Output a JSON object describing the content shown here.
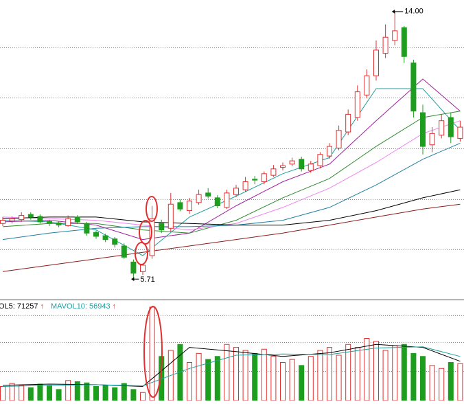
{
  "chart_data": {
    "type": "candlestick",
    "ylim": [
      5.03,
      14.36
    ],
    "grid_levels": [
      12.89,
      11.32,
      9.74,
      8.15,
      6.59
    ],
    "up_color": "#e03030",
    "down_color": "#1e9e1e",
    "candles": {
      "open": [
        7.4,
        7.48,
        7.52,
        7.68,
        7.62,
        7.46,
        7.42,
        7.33,
        7.6,
        7.4,
        7.12,
        7.02,
        6.92,
        6.7,
        6.2,
        5.9,
        6.4,
        7.4,
        7.25,
        8.05,
        7.8,
        8.05,
        8.35,
        8.2,
        7.9,
        8.3,
        8.45,
        8.78,
        8.7,
        8.9,
        9.15,
        9.25,
        9.4,
        9.05,
        9.2,
        9.5,
        9.75,
        10.25,
        10.7,
        11.4,
        12.0,
        12.7,
        13.1,
        13.5,
        12.4,
        10.85,
        9.85,
        10.15,
        10.7,
        10.05
      ],
      "high": [
        7.6,
        7.62,
        7.75,
        7.75,
        7.68,
        7.52,
        7.48,
        7.65,
        7.66,
        7.45,
        7.18,
        7.08,
        6.98,
        6.78,
        6.28,
        6.15,
        7.95,
        7.52,
        8.35,
        8.15,
        8.2,
        8.45,
        8.5,
        8.28,
        8.45,
        8.6,
        8.85,
        8.88,
        9.02,
        9.22,
        9.3,
        9.45,
        9.48,
        9.35,
        9.62,
        9.9,
        10.45,
        10.95,
        11.7,
        12.2,
        13.1,
        13.6,
        14.0,
        13.55,
        12.5,
        11.1,
        10.4,
        10.8,
        10.85,
        10.6
      ],
      "low": [
        7.32,
        7.4,
        7.45,
        7.52,
        7.4,
        7.32,
        7.28,
        7.3,
        7.38,
        7.02,
        6.92,
        6.82,
        6.65,
        6.3,
        5.71,
        5.8,
        6.3,
        7.1,
        7.15,
        7.78,
        7.7,
        7.98,
        8.18,
        7.88,
        7.85,
        8.22,
        8.38,
        8.62,
        8.62,
        8.85,
        9.05,
        9.18,
        9.02,
        8.98,
        9.12,
        9.42,
        9.68,
        10.15,
        10.6,
        11.3,
        11.85,
        12.55,
        12.95,
        12.4,
        10.7,
        9.55,
        9.62,
        10.05,
        9.9,
        9.95
      ],
      "close": [
        7.5,
        7.55,
        7.65,
        7.6,
        7.45,
        7.4,
        7.35,
        7.55,
        7.45,
        7.1,
        7.0,
        6.9,
        6.75,
        6.35,
        5.85,
        6.1,
        7.55,
        7.2,
        8.0,
        7.85,
        8.1,
        8.3,
        8.25,
        7.95,
        8.35,
        8.5,
        8.7,
        8.75,
        8.95,
        9.1,
        9.2,
        9.35,
        9.1,
        9.25,
        9.55,
        9.8,
        10.3,
        10.8,
        11.5,
        12.0,
        12.8,
        13.2,
        13.4,
        12.6,
        10.9,
        9.8,
        10.2,
        10.6,
        10.1,
        10.4
      ]
    },
    "high_label": "14.00",
    "low_label": "5.71",
    "ma_x": [
      0,
      5,
      10,
      15,
      20,
      25,
      30,
      35,
      40,
      45,
      49
    ],
    "ma_lines": [
      {
        "color": "#1f9f9f",
        "values": [
          7.5,
          7.45,
          7.2,
          6.4,
          7.6,
          8.25,
          8.95,
          9.45,
          11.6,
          11.6,
          10.3
        ]
      },
      {
        "color": "#a020a0",
        "values": [
          7.45,
          7.5,
          7.35,
          6.9,
          7.1,
          7.95,
          8.7,
          9.25,
          10.6,
          11.9,
          10.9
        ]
      },
      {
        "color": "#2e8b2e",
        "values": [
          7.3,
          7.4,
          7.4,
          7.2,
          7.1,
          7.5,
          8.2,
          8.8,
          9.8,
          10.7,
          10.9
        ]
      },
      {
        "color": "#ee82ee",
        "values": [
          7.6,
          7.55,
          7.5,
          7.35,
          7.2,
          7.4,
          7.9,
          8.5,
          9.3,
          10.2,
          10.6
        ]
      },
      {
        "color": "#2080a0",
        "values": [
          6.9,
          7.1,
          7.25,
          7.3,
          7.3,
          7.35,
          7.5,
          7.9,
          8.6,
          9.4,
          9.9
        ]
      },
      {
        "color": "#000000",
        "values": [
          7.55,
          7.6,
          7.6,
          7.45,
          7.4,
          7.35,
          7.35,
          7.5,
          7.8,
          8.2,
          8.45
        ]
      },
      {
        "color": "#8b1a1a",
        "values": [
          5.9,
          6.1,
          6.3,
          6.5,
          6.7,
          6.9,
          7.1,
          7.35,
          7.6,
          7.85,
          8.0
        ]
      }
    ],
    "volume": {
      "ylim": [
        0,
        160000
      ],
      "grid_levels": [
        138000,
        94000,
        46000
      ],
      "values": [
        20000,
        25000,
        22000,
        18000,
        24000,
        21000,
        15000,
        30000,
        28000,
        26000,
        20000,
        22000,
        18000,
        25000,
        15000,
        10000,
        152000,
        70000,
        80000,
        90000,
        60000,
        75000,
        65000,
        70000,
        90000,
        85000,
        80000,
        75000,
        82000,
        70000,
        60000,
        65000,
        55000,
        70000,
        80000,
        85000,
        72000,
        90000,
        85000,
        100000,
        95000,
        80000,
        88000,
        90000,
        75000,
        70000,
        55000,
        50000,
        60000,
        58000
      ],
      "ma_lines": [
        {
          "color": "#000000",
          "values": [
            22000,
            24000,
            23000,
            20000,
            85000,
            78000,
            70000,
            76000,
            90000,
            85000,
            62000
          ]
        },
        {
          "color": "#1f9f9f",
          "values": [
            20000,
            22000,
            23000,
            21000,
            50000,
            72000,
            74000,
            73000,
            84000,
            86000,
            70000
          ]
        }
      ],
      "labels": [
        {
          "text": "OL5: ",
          "value": 71257,
          "trend": "↑",
          "color": "#000000"
        },
        {
          "text": "MAVOL10: ",
          "value": 56943,
          "trend": "↑",
          "color": "#1f9f9f"
        }
      ]
    }
  }
}
